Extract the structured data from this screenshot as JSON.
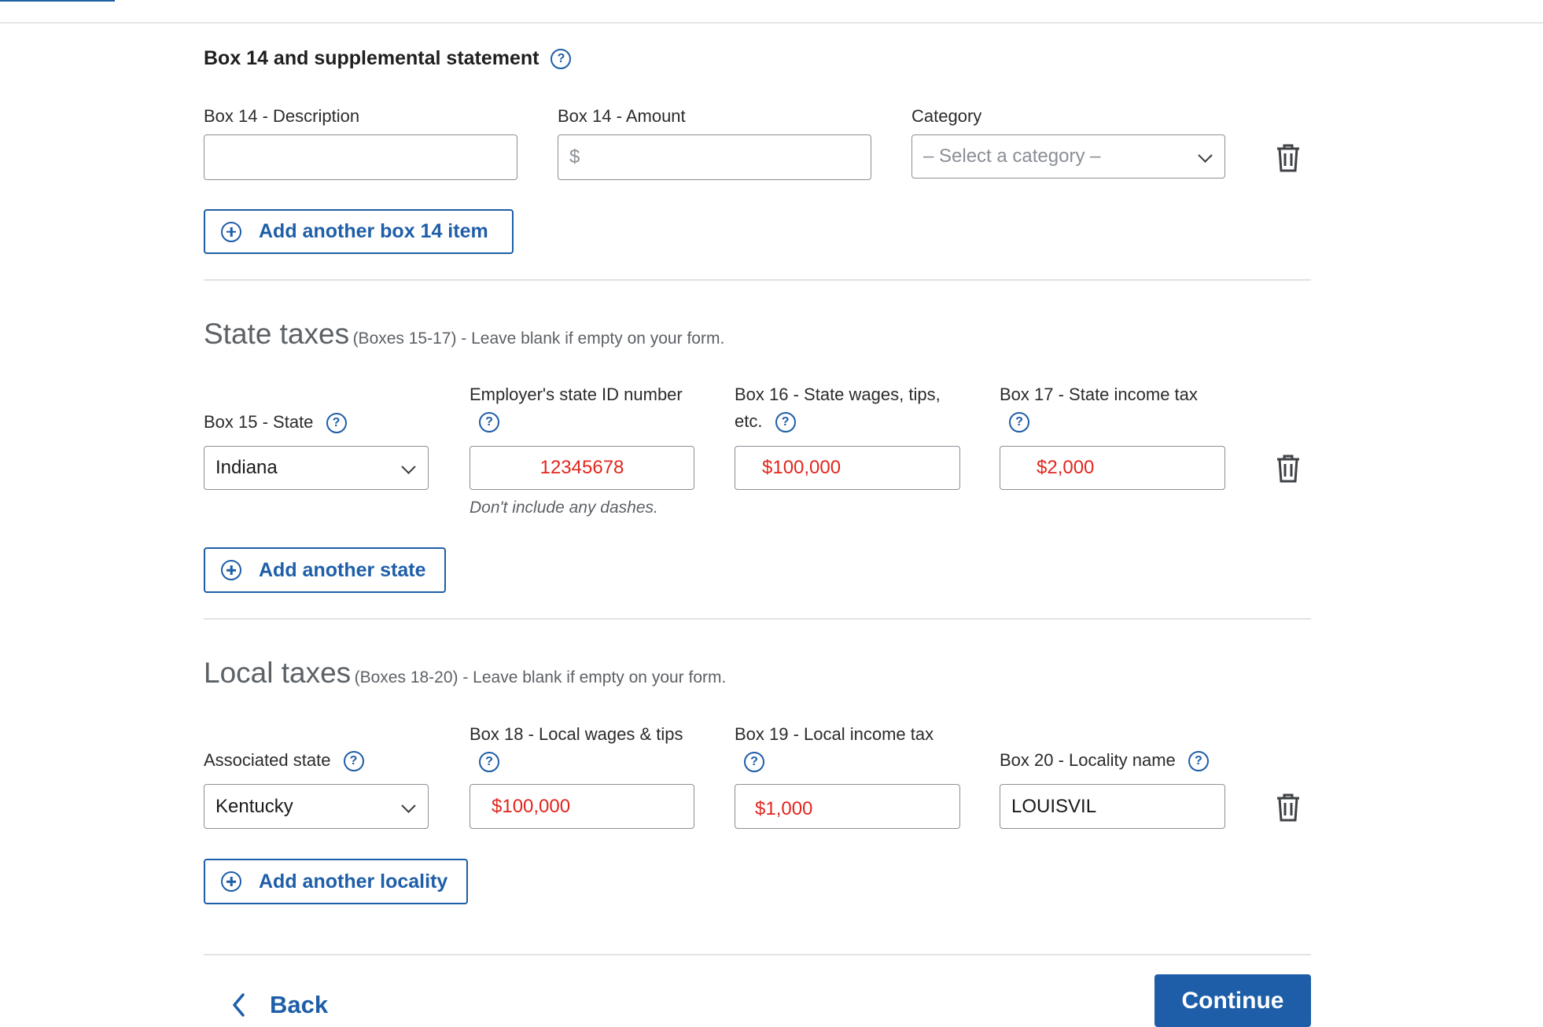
{
  "box14": {
    "title": "Box 14 and supplemental statement",
    "description_label": "Box 14 - Description",
    "description_value": "",
    "amount_label": "Box 14 - Amount",
    "amount_placeholder": "$",
    "category_label": "Category",
    "category_value": "– Select a category –",
    "add_label": "Add another box 14 item"
  },
  "state": {
    "title": "State taxes",
    "subtitle": "(Boxes 15-17) - Leave blank if empty on your form.",
    "box15_label": "Box 15 - State",
    "box15_value": "Indiana",
    "employer_id_label": "Employer's state ID number",
    "employer_id_value": "12345678",
    "employer_id_hint": "Don't include any dashes.",
    "box16_label_line1": "Box 16 - State wages, tips,",
    "box16_label_line2": "etc.",
    "box16_value": "$100,000",
    "box17_label": "Box 17 - State income tax",
    "box17_value": "$2,000",
    "add_label": "Add another state"
  },
  "local": {
    "title": "Local taxes",
    "subtitle": "(Boxes 18-20) - Leave blank if empty on your form.",
    "assoc_label": "Associated state",
    "assoc_value": "Kentucky",
    "box18_label": "Box 18 - Local wages & tips",
    "box18_value": "$100,000",
    "box19_label": "Box 19 - Local income tax",
    "box19_value": "$1,000",
    "box20_label": "Box 20 - Locality name",
    "box20_value": "LOUISVIL",
    "add_label": "Add another locality"
  },
  "footer": {
    "back_label": "Back",
    "continue_label": "Continue"
  },
  "icons": {
    "help": "question-circle-icon",
    "trash": "trash-icon",
    "plus": "plus-circle-icon",
    "chevron": "chevron-down-icon",
    "back": "chevron-left-icon"
  },
  "colors": {
    "accent": "#1e5ea8",
    "error_text": "#e2261d"
  }
}
